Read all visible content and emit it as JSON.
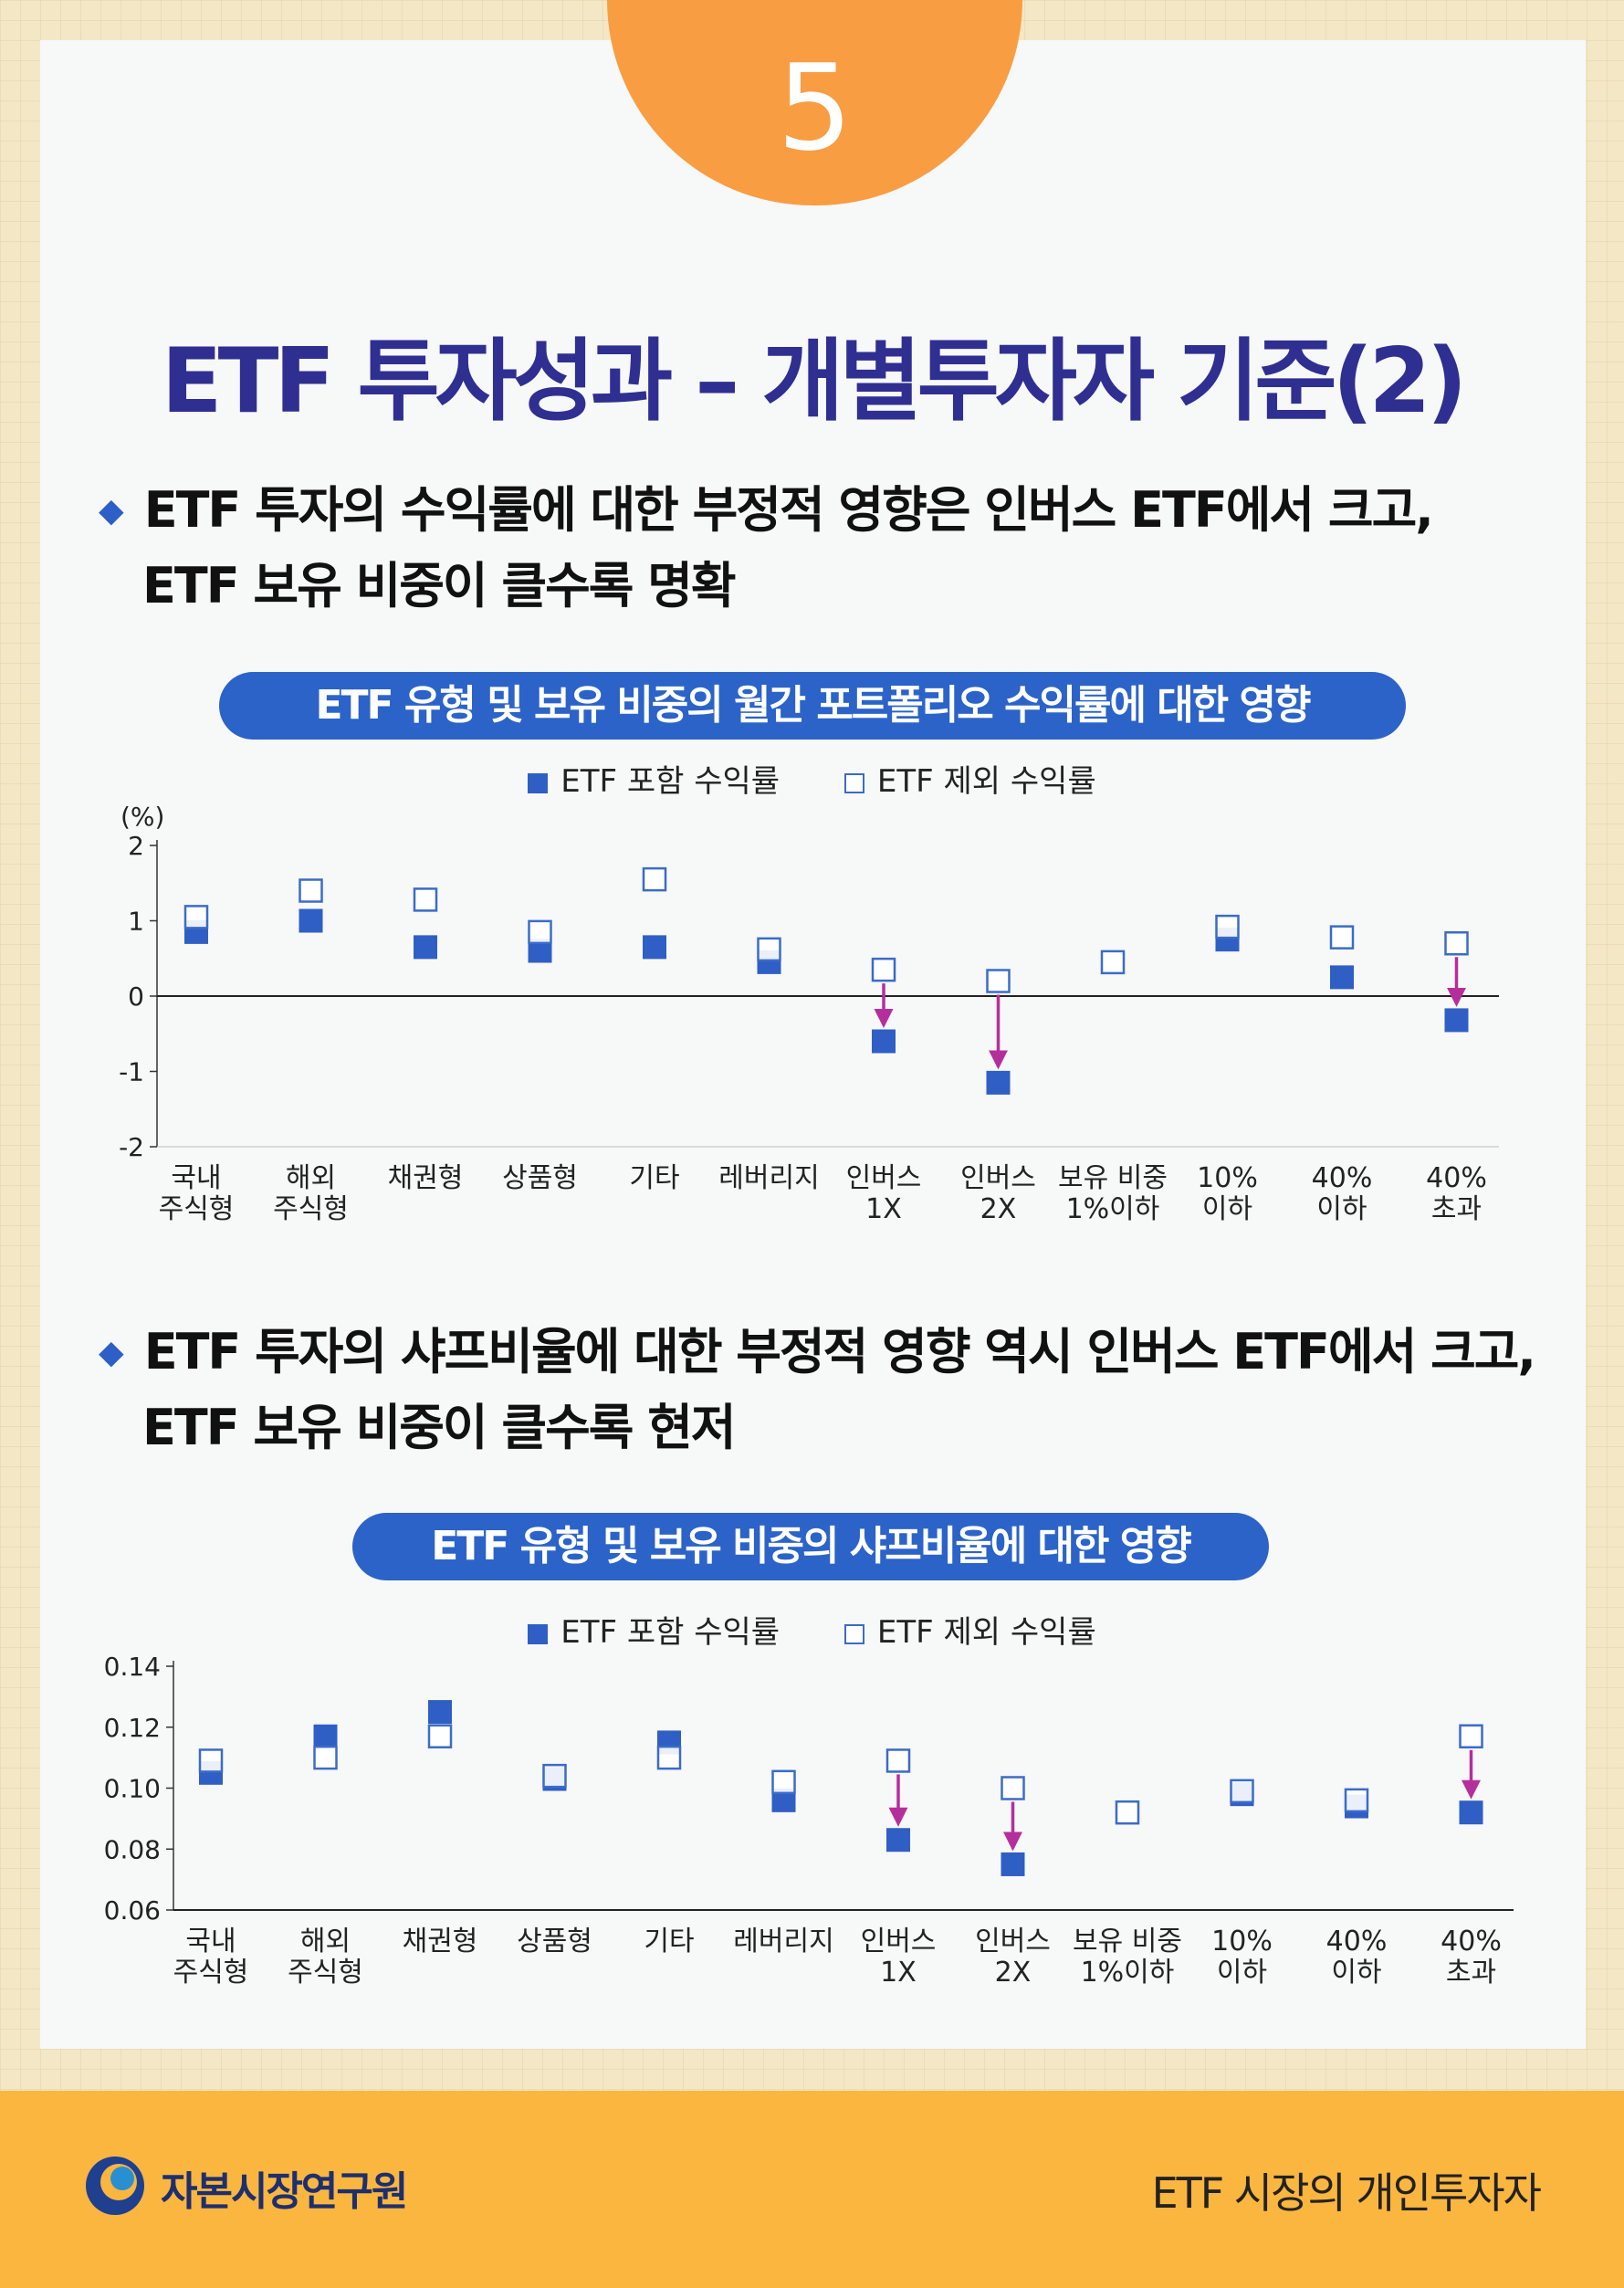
{
  "badge": "5",
  "title": "ETF 투자성과 – 개별투자자 기준(2)",
  "sections": [
    {
      "line1": "ETF 투자의 수익률에 대한 부정적 영향은 인버스 ETF에서 크고,",
      "line2": "ETF 보유 비중이 클수록 명확"
    },
    {
      "line1": "ETF 투자의 샤프비율에 대한 부정적 영향 역시 인버스 ETF에서 크고,",
      "line2": "ETF 보유 비중이 클수록 현저"
    }
  ],
  "colors": {
    "filled": "#2f5fc5",
    "hollow_stroke": "#3a6cc8",
    "arrow": "#b52f9c",
    "title_bg": "#2b63c8",
    "heading": "#2f2f91",
    "badge": "#f99d42",
    "footer": "#fbb63f"
  },
  "chart_data": [
    {
      "type": "scatter",
      "title": "ETF 유형 및 보유 비중의 월간 포트폴리오 수익률에 대한 영향",
      "legend": [
        "ETF 포함 수익률",
        "ETF 제외 수익률"
      ],
      "unit_label": "(%)",
      "categories": [
        [
          "국내",
          "주식형"
        ],
        [
          "해외",
          "주식형"
        ],
        [
          "채권형"
        ],
        [
          "상품형"
        ],
        [
          "기타"
        ],
        [
          "레버리지"
        ],
        [
          "인버스",
          "1X"
        ],
        [
          "인버스",
          "2X"
        ],
        [
          "보유 비중",
          "1%이하"
        ],
        [
          "10%",
          "이하"
        ],
        [
          "40%",
          "이하"
        ],
        [
          "40%",
          "초과"
        ]
      ],
      "series": [
        {
          "name": "ETF 포함 수익률",
          "marker": "filled",
          "values": [
            0.85,
            1.0,
            0.65,
            0.6,
            0.65,
            0.45,
            -0.6,
            -1.15,
            null,
            0.75,
            0.25,
            -0.32
          ]
        },
        {
          "name": "ETF 제외 수익률",
          "marker": "hollow",
          "values": [
            1.05,
            1.4,
            1.28,
            0.85,
            1.55,
            0.62,
            0.35,
            0.2,
            0.45,
            0.92,
            0.78,
            0.7
          ]
        }
      ],
      "arrows_at": [
        6,
        7,
        11
      ],
      "ylim": [
        -2,
        2
      ],
      "yticks": [
        "2",
        "1",
        "0",
        "-1",
        "-2"
      ],
      "ytick_values": [
        2,
        1,
        0,
        -1,
        -2
      ],
      "zero_line": true
    },
    {
      "type": "scatter",
      "title": "ETF 유형 및 보유 비중의 샤프비율에 대한 영향",
      "legend": [
        "ETF 포함 수익률",
        "ETF 제외 수익률"
      ],
      "unit_label": "",
      "categories": [
        [
          "국내",
          "주식형"
        ],
        [
          "해외",
          "주식형"
        ],
        [
          "채권형"
        ],
        [
          "상품형"
        ],
        [
          "기타"
        ],
        [
          "레버리지"
        ],
        [
          "인버스",
          "1X"
        ],
        [
          "인버스",
          "2X"
        ],
        [
          "보유 비중",
          "1%이하"
        ],
        [
          "10%",
          "이하"
        ],
        [
          "40%",
          "이하"
        ],
        [
          "40%",
          "초과"
        ]
      ],
      "series": [
        {
          "name": "ETF 포함 수익률",
          "marker": "filled",
          "values": [
            0.105,
            0.117,
            0.125,
            0.103,
            0.115,
            0.096,
            0.083,
            0.075,
            null,
            0.098,
            0.094,
            0.092
          ]
        },
        {
          "name": "ETF 제외 수익률",
          "marker": "hollow",
          "values": [
            0.109,
            0.11,
            0.117,
            0.104,
            0.11,
            0.102,
            0.109,
            0.1,
            0.092,
            0.099,
            0.096,
            0.117
          ]
        }
      ],
      "arrows_at": [
        6,
        7,
        11
      ],
      "ylim": [
        0.06,
        0.14
      ],
      "yticks": [
        "0.14",
        "0.12",
        "0.10",
        "0.08",
        "0.06"
      ],
      "ytick_values": [
        0.14,
        0.12,
        0.1,
        0.08,
        0.06
      ],
      "zero_line": false
    }
  ],
  "footer": {
    "org": "자본시장연구원",
    "doc": "ETF 시장의 개인투자자"
  }
}
